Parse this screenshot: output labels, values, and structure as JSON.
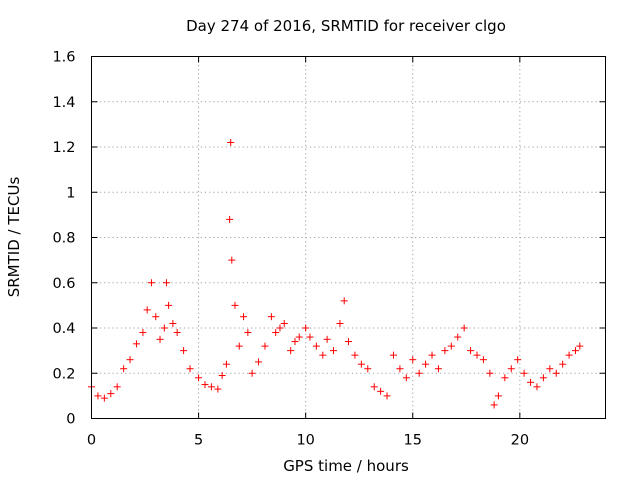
{
  "chart_data": {
    "type": "scatter",
    "title": "Day 274 of 2016, SRMTID for receiver clgo",
    "xlabel": "GPS time / hours",
    "ylabel": "SRMTID / TECUs",
    "xlim": [
      0,
      24
    ],
    "ylim": [
      0,
      1.6
    ],
    "x_ticks": [
      0,
      5,
      10,
      15,
      20
    ],
    "x_tick_labels": [
      "0",
      "5",
      "10",
      "15",
      "20"
    ],
    "y_ticks": [
      0,
      0.2,
      0.4,
      0.6,
      0.8,
      1.0,
      1.2,
      1.4,
      1.6
    ],
    "y_tick_labels": [
      "0",
      "0.2",
      "0.4",
      "0.6",
      "0.8",
      "1",
      "1.2",
      "1.4",
      "1.6"
    ],
    "grid": true,
    "marker": "+",
    "series": [
      {
        "name": "SRMTID",
        "color": "#ff0000",
        "x": [
          0.0,
          0.3,
          0.6,
          0.9,
          1.2,
          1.5,
          1.8,
          2.1,
          2.4,
          2.6,
          2.8,
          3.0,
          3.2,
          3.4,
          3.5,
          3.6,
          3.8,
          4.0,
          4.3,
          4.6,
          5.0,
          5.3,
          5.6,
          5.9,
          6.1,
          6.3,
          6.45,
          6.5,
          6.55,
          6.7,
          6.9,
          7.1,
          7.3,
          7.5,
          7.8,
          8.1,
          8.4,
          8.6,
          8.8,
          9.0,
          9.3,
          9.5,
          9.7,
          10.0,
          10.2,
          10.5,
          10.8,
          11.0,
          11.3,
          11.6,
          11.8,
          12.0,
          12.3,
          12.6,
          12.9,
          13.2,
          13.5,
          13.8,
          14.1,
          14.4,
          14.7,
          15.0,
          15.3,
          15.6,
          15.9,
          16.2,
          16.5,
          16.8,
          17.1,
          17.4,
          17.7,
          18.0,
          18.3,
          18.6,
          18.8,
          19.0,
          19.3,
          19.6,
          19.9,
          20.2,
          20.5,
          20.8,
          21.1,
          21.4,
          21.7,
          22.0,
          22.3,
          22.6,
          22.8
        ],
        "y": [
          0.14,
          0.1,
          0.09,
          0.11,
          0.14,
          0.22,
          0.26,
          0.33,
          0.38,
          0.48,
          0.6,
          0.45,
          0.35,
          0.4,
          0.6,
          0.5,
          0.42,
          0.38,
          0.3,
          0.22,
          0.18,
          0.15,
          0.14,
          0.13,
          0.19,
          0.24,
          0.88,
          1.22,
          0.7,
          0.5,
          0.32,
          0.45,
          0.38,
          0.2,
          0.25,
          0.32,
          0.45,
          0.38,
          0.4,
          0.42,
          0.3,
          0.34,
          0.36,
          0.4,
          0.36,
          0.32,
          0.28,
          0.35,
          0.3,
          0.42,
          0.52,
          0.34,
          0.28,
          0.24,
          0.22,
          0.14,
          0.12,
          0.1,
          0.28,
          0.22,
          0.18,
          0.26,
          0.2,
          0.24,
          0.28,
          0.22,
          0.3,
          0.32,
          0.36,
          0.4,
          0.3,
          0.28,
          0.26,
          0.2,
          0.06,
          0.1,
          0.18,
          0.22,
          0.26,
          0.2,
          0.16,
          0.14,
          0.18,
          0.22,
          0.2,
          0.24,
          0.28,
          0.3,
          0.32
        ]
      }
    ]
  }
}
